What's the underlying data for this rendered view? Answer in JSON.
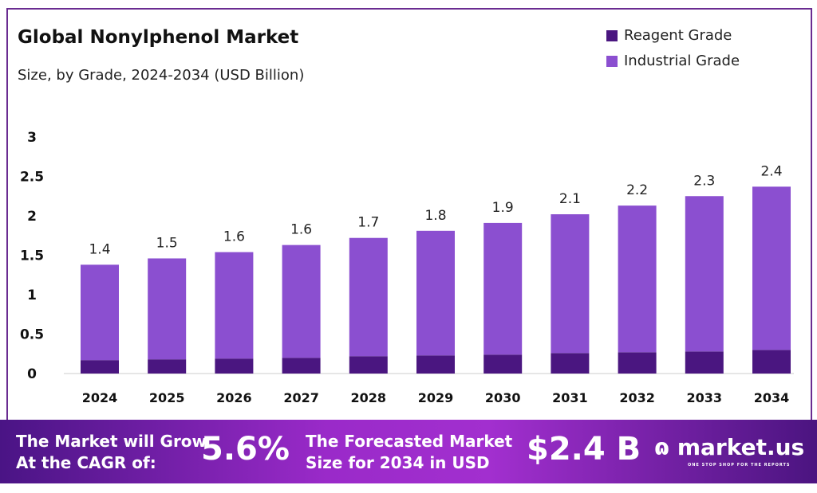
{
  "chart_data": {
    "type": "bar",
    "stacked": true,
    "title": "Global Nonylphenol Market",
    "subtitle": "Size, by Grade, 2024-2034 (USD Billion)",
    "categories": [
      "2024",
      "2025",
      "2026",
      "2027",
      "2028",
      "2029",
      "2030",
      "2031",
      "2032",
      "2033",
      "2034"
    ],
    "series": [
      {
        "name": "Reagent Grade",
        "color": "#4a1680",
        "values": [
          0.17,
          0.18,
          0.19,
          0.2,
          0.22,
          0.23,
          0.24,
          0.26,
          0.27,
          0.28,
          0.3
        ]
      },
      {
        "name": "Industrial Grade",
        "color": "#8b4fd0",
        "values": [
          1.21,
          1.28,
          1.35,
          1.43,
          1.5,
          1.58,
          1.67,
          1.76,
          1.86,
          1.97,
          2.07
        ]
      }
    ],
    "totals_labels": [
      "1.4",
      "1.5",
      "1.6",
      "1.6",
      "1.7",
      "1.8",
      "1.9",
      "2.1",
      "2.2",
      "2.3",
      "2.4"
    ],
    "yticks": [
      "0",
      "0.5",
      "1",
      "1.5",
      "2",
      "2.5",
      "3"
    ],
    "ylim": [
      0,
      3
    ],
    "grid": false,
    "legend": "top-right"
  },
  "banner": {
    "cagr_text": "The Market will Grow\nAt the CAGR of:",
    "cagr": "5.6%",
    "forecast_text": "The Forecasted Market\nSize for 2034 in USD",
    "forecast": "$2.4 B",
    "logo": "market.us",
    "tagline": "ONE STOP SHOP FOR THE REPORTS"
  }
}
